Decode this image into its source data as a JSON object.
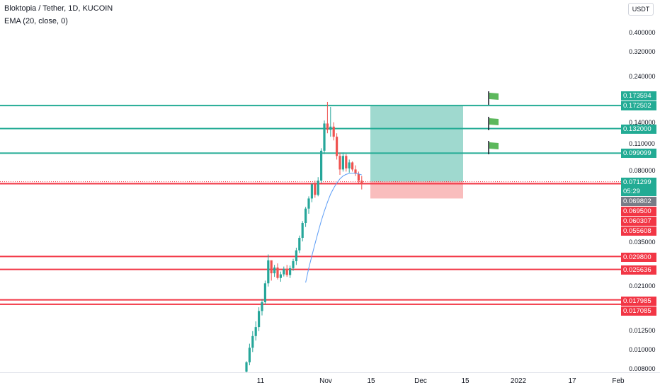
{
  "legend": {
    "title": "Bloktopia / Tether, 1D, KUCOIN",
    "ema": "EMA (20, close, 0)"
  },
  "currency_button": "USDT",
  "price_ticks": [
    "0.400000",
    "0.320000",
    "0.240000",
    "0.140000",
    "0.110000",
    "0.080000",
    "0.035000",
    "0.021000",
    "0.012500",
    "0.010000",
    "0.008000"
  ],
  "price_tags": [
    {
      "value": "0.173594",
      "color": "green"
    },
    {
      "value": "0.172502",
      "color": "green"
    },
    {
      "value": "0.132000",
      "color": "green"
    },
    {
      "value": "0.099099",
      "color": "green"
    },
    {
      "value": "0.071299",
      "color": "green"
    },
    {
      "value": "05:29",
      "color": "green"
    },
    {
      "value": "0.069802",
      "color": "grey"
    },
    {
      "value": "0.069500",
      "color": "red"
    },
    {
      "value": "0.060307",
      "color": "red"
    },
    {
      "value": "0.055608",
      "color": "red"
    },
    {
      "value": "0.029800",
      "color": "red"
    },
    {
      "value": "0.025636",
      "color": "red"
    },
    {
      "value": "0.017985",
      "color": "red"
    },
    {
      "value": "0.017085",
      "color": "red"
    }
  ],
  "time_labels": [
    "11",
    "Nov",
    "15",
    "Dec",
    "15",
    "2022",
    "17",
    "Feb"
  ],
  "colors": {
    "up": "#26a69a",
    "down": "#ef5350",
    "line_green": "#22ab94",
    "line_red": "#f23645",
    "ema": "#5b9cf6",
    "profit_zone": "#9fd9cf",
    "loss_zone": "#f9bdbd",
    "flag": "#5cb85c"
  },
  "icons": {
    "flag": "flag-icon"
  },
  "chart_data": {
    "type": "candlestick",
    "symbol": "Bloktopia / Tether",
    "interval": "1D",
    "exchange": "KUCOIN",
    "scale": "log",
    "horizontal_levels": [
      0.172502,
      0.132,
      0.099099,
      0.0695,
      0.0298,
      0.025636,
      0.017985,
      0.017085
    ],
    "last_price": 0.069802,
    "candles": [
      [
        0.0078,
        0.0088,
        0.0075,
        0.0087
      ],
      [
        0.0087,
        0.0108,
        0.0084,
        0.0103
      ],
      [
        0.0103,
        0.0125,
        0.0098,
        0.0118
      ],
      [
        0.0118,
        0.014,
        0.0112,
        0.0131
      ],
      [
        0.0131,
        0.0165,
        0.0125,
        0.0158
      ],
      [
        0.0158,
        0.0182,
        0.015,
        0.0175
      ],
      [
        0.0175,
        0.0225,
        0.017,
        0.0218
      ],
      [
        0.0218,
        0.0305,
        0.021,
        0.0285
      ],
      [
        0.0285,
        0.028,
        0.0225,
        0.0245
      ],
      [
        0.0245,
        0.027,
        0.0235,
        0.0262
      ],
      [
        0.0262,
        0.0275,
        0.0228,
        0.0232
      ],
      [
        0.0232,
        0.025,
        0.0222,
        0.0242
      ],
      [
        0.0242,
        0.0265,
        0.0236,
        0.0258
      ],
      [
        0.0258,
        0.027,
        0.0235,
        0.024
      ],
      [
        0.024,
        0.0268,
        0.0232,
        0.026
      ],
      [
        0.026,
        0.029,
        0.0252,
        0.0282
      ],
      [
        0.0282,
        0.033,
        0.027,
        0.032
      ],
      [
        0.032,
        0.038,
        0.031,
        0.037
      ],
      [
        0.037,
        0.045,
        0.0355,
        0.044
      ],
      [
        0.044,
        0.053,
        0.042,
        0.052
      ],
      [
        0.052,
        0.06,
        0.049,
        0.0585
      ],
      [
        0.0585,
        0.07,
        0.056,
        0.069
      ],
      [
        0.069,
        0.072,
        0.059,
        0.061
      ],
      [
        0.061,
        0.075,
        0.06,
        0.072
      ],
      [
        0.072,
        0.105,
        0.07,
        0.102
      ],
      [
        0.102,
        0.145,
        0.098,
        0.14
      ],
      [
        0.14,
        0.18,
        0.125,
        0.13
      ],
      [
        0.13,
        0.17,
        0.12,
        0.135
      ],
      [
        0.135,
        0.142,
        0.115,
        0.12
      ],
      [
        0.12,
        0.125,
        0.092,
        0.096
      ],
      [
        0.096,
        0.1,
        0.077,
        0.082
      ],
      [
        0.082,
        0.1,
        0.08,
        0.096
      ],
      [
        0.096,
        0.098,
        0.08,
        0.083
      ],
      [
        0.083,
        0.092,
        0.079,
        0.089
      ],
      [
        0.089,
        0.09,
        0.08,
        0.082
      ],
      [
        0.082,
        0.086,
        0.076,
        0.078
      ],
      [
        0.078,
        0.08,
        0.07,
        0.072
      ],
      [
        0.072,
        0.076,
        0.065,
        0.0698
      ]
    ],
    "ema_20": [
      0.022,
      0.026,
      0.03,
      0.0345,
      0.0395,
      0.045,
      0.0505,
      0.056,
      0.0615,
      0.066,
      0.07,
      0.0735,
      0.076,
      0.0775,
      0.0782,
      0.0785,
      0.0785,
      0.0778,
      0.077
    ]
  }
}
